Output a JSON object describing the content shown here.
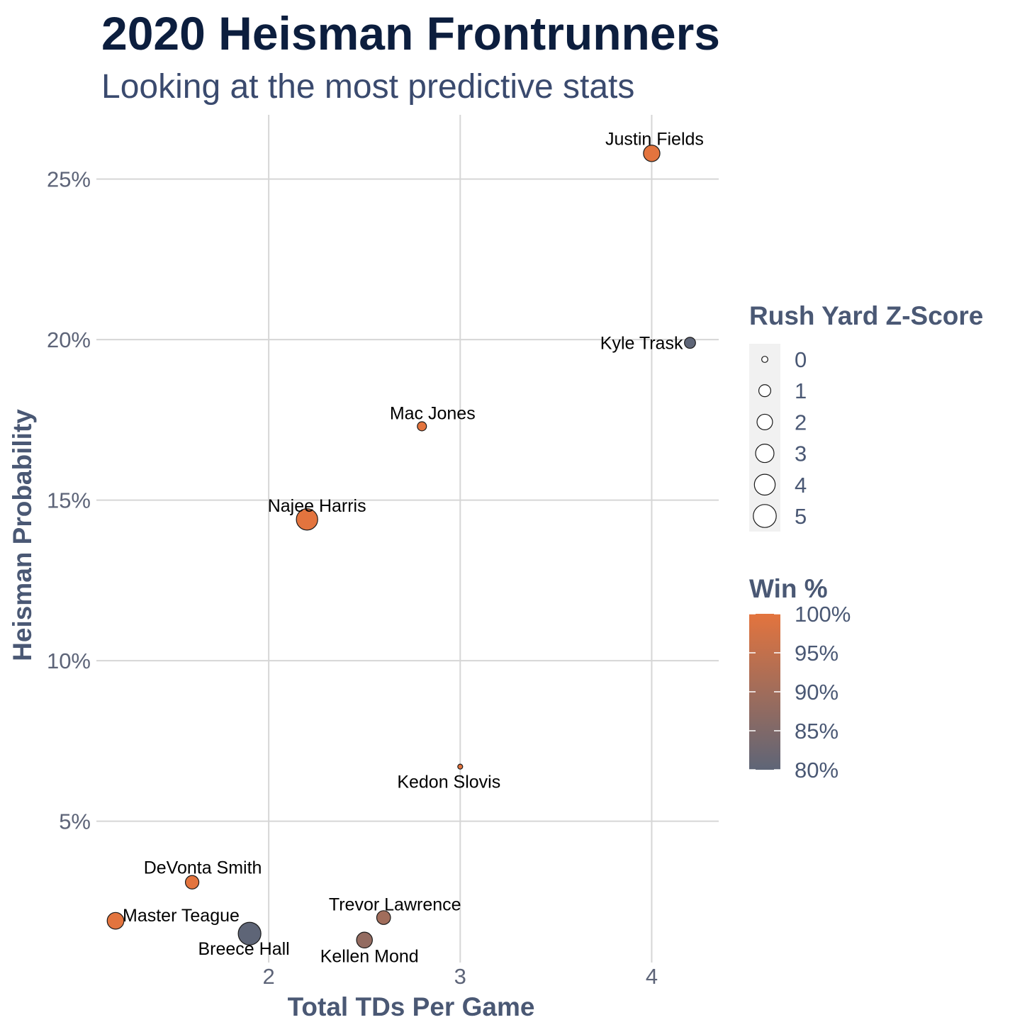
{
  "chart_data": {
    "type": "scatter",
    "title": "2020 Heisman Frontrunners",
    "subtitle": "Looking at the most predictive stats",
    "xlabel": "Total TDs Per Game",
    "ylabel": "Heisman Probability",
    "xlim": [
      1.1,
      4.35
    ],
    "ylim": [
      0.6,
      27.0
    ],
    "x_ticks": [
      2,
      3,
      4
    ],
    "x_tick_labels": [
      "2",
      "3",
      "4"
    ],
    "y_ticks": [
      5,
      10,
      15,
      20,
      25
    ],
    "y_tick_labels": [
      "5%",
      "10%",
      "15%",
      "20%",
      "25%"
    ],
    "grid": true,
    "legend_placement": "right",
    "size_legend": {
      "title": "Rush Yard Z-Score",
      "values": [
        0,
        1,
        2,
        3,
        4,
        5
      ],
      "labels": [
        "0",
        "1",
        "2",
        "3",
        "4",
        "5"
      ]
    },
    "color_legend": {
      "title": "Win %",
      "low_color": "#5e6577",
      "high_color": "#e3743e",
      "values": [
        80,
        85,
        90,
        95,
        100
      ],
      "labels": [
        "80%",
        "85%",
        "90%",
        "95%",
        "100%"
      ]
    },
    "points": [
      {
        "name": "Justin Fields",
        "x": 4.0,
        "y": 25.8,
        "z": 2.5,
        "win": 100
      },
      {
        "name": "Kyle Trask",
        "x": 4.2,
        "y": 19.9,
        "z": 1.0,
        "win": 80
      },
      {
        "name": "Mac Jones",
        "x": 2.8,
        "y": 17.3,
        "z": 0.6,
        "win": 100
      },
      {
        "name": "Najee Harris",
        "x": 2.2,
        "y": 14.4,
        "z": 4.4,
        "win": 100
      },
      {
        "name": "Kedon Slovis",
        "x": 3.0,
        "y": 6.7,
        "z": 0.0,
        "win": 100
      },
      {
        "name": "DeVonta Smith",
        "x": 1.6,
        "y": 3.1,
        "z": 1.6,
        "win": 100
      },
      {
        "name": "Master Teague",
        "x": 1.2,
        "y": 1.9,
        "z": 2.6,
        "win": 100
      },
      {
        "name": "Breece Hall",
        "x": 1.9,
        "y": 1.5,
        "z": 5.0,
        "win": 80
      },
      {
        "name": "Trevor Lawrence",
        "x": 2.6,
        "y": 2.0,
        "z": 1.7,
        "win": 90
      },
      {
        "name": "Kellen Mond",
        "x": 2.5,
        "y": 1.3,
        "z": 2.3,
        "win": 88
      }
    ]
  }
}
